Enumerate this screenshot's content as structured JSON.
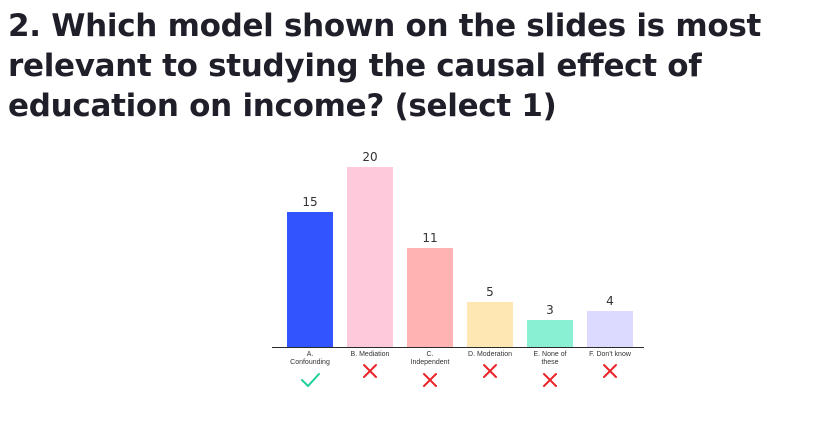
{
  "question": "2. Which model shown on the slides is most relevant to studying the causal effect of education on income? (select 1)",
  "chart_data": {
    "type": "bar",
    "categories": [
      [
        "A.",
        "Confounding"
      ],
      [
        "B. Mediation"
      ],
      [
        "C.",
        "Independent"
      ],
      [
        "D. Moderation"
      ],
      [
        "E. None of",
        "these"
      ],
      [
        "F. Don't know"
      ]
    ],
    "values": [
      15,
      20,
      11,
      5,
      3,
      4
    ],
    "correct": [
      true,
      false,
      false,
      false,
      false,
      false
    ],
    "colors": [
      "#3154ff",
      "#ffc9dc",
      "#ffb3b3",
      "#ffe7b3",
      "#8af0d4",
      "#dcdaff"
    ],
    "title": "",
    "xlabel": "",
    "ylabel": "",
    "ylim": [
      0,
      20
    ],
    "grid": false,
    "legend": "none"
  },
  "mark_colors": {
    "correct": "#1fcf9a",
    "wrong": "#e8232a"
  }
}
